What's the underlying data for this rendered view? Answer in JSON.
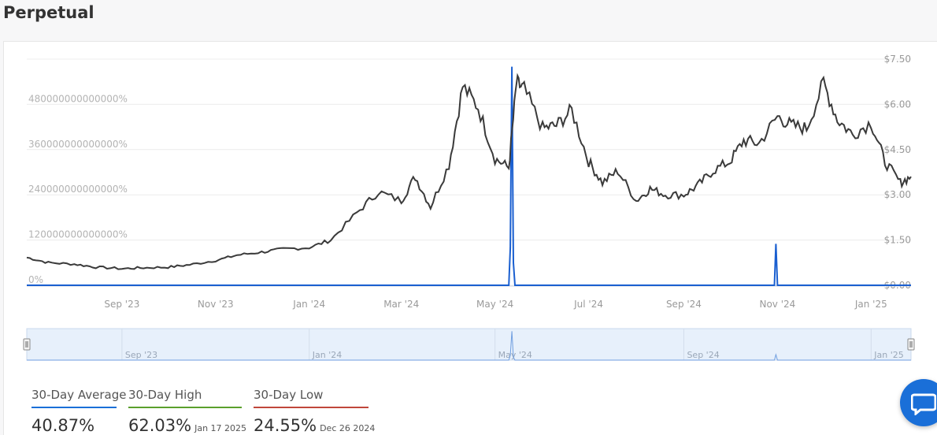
{
  "page": {
    "title": "Perpetual"
  },
  "colors": {
    "price_line": "#3a3a3a",
    "rate_line": "#1a5fd0",
    "navigator_fill": "#e7f0fb",
    "avg_accent": "#1a6fd8",
    "high_accent": "#5aa02c",
    "low_accent": "#c0473b",
    "chat_button": "#1a6fd8"
  },
  "chart_data": {
    "type": "line",
    "left_axis": {
      "ticks": [
        "0%",
        "120000000000000%",
        "240000000000000%",
        "360000000000000%",
        "480000000000000%"
      ],
      "tick_values": [
        0,
        120000000000000,
        240000000000000,
        360000000000000,
        480000000000000
      ],
      "range": [
        0,
        600000000000000
      ]
    },
    "right_axis": {
      "ticks": [
        "$0.00",
        "$1.50",
        "$3.00",
        "$4.50",
        "$6.00",
        "$7.50"
      ],
      "tick_values": [
        0,
        1.5,
        3.0,
        4.5,
        6.0,
        7.5
      ],
      "range": [
        0,
        7.5
      ]
    },
    "x_axis": {
      "range": [
        "2023-07-01",
        "2025-01-27"
      ],
      "ticks": [
        "Sep '23",
        "Nov '23",
        "Jan '24",
        "Mar '24",
        "May '24",
        "Jul '24",
        "Sep '24",
        "Nov '24",
        "Jan '25"
      ],
      "tick_dates": [
        "2023-09-01",
        "2023-11-01",
        "2024-01-01",
        "2024-03-01",
        "2024-05-01",
        "2024-07-01",
        "2024-09-01",
        "2024-11-01",
        "2025-01-01"
      ]
    },
    "navigator": {
      "ticks": [
        "Sep '23",
        "Jan '24",
        "May '24",
        "Sep '24",
        "Jan '25"
      ],
      "tick_dates": [
        "2023-09-01",
        "2024-01-01",
        "2024-05-01",
        "2024-09-01",
        "2025-01-01"
      ]
    },
    "grid": true,
    "series": [
      {
        "axis": "right",
        "x": [
          "2023-07-01",
          "2023-07-15",
          "2023-08-01",
          "2023-08-15",
          "2023-09-01",
          "2023-09-15",
          "2023-10-01",
          "2023-10-15",
          "2023-11-01",
          "2023-11-15",
          "2023-12-01",
          "2023-12-15",
          "2024-01-01",
          "2024-01-15",
          "2024-02-01",
          "2024-02-15",
          "2024-03-01",
          "2024-03-10",
          "2024-03-20",
          "2024-04-01",
          "2024-04-10",
          "2024-04-20",
          "2024-05-01",
          "2024-05-10",
          "2024-05-15",
          "2024-05-20",
          "2024-06-01",
          "2024-06-10",
          "2024-06-20",
          "2024-07-01",
          "2024-07-10",
          "2024-07-20",
          "2024-08-01",
          "2024-08-10",
          "2024-08-20",
          "2024-09-01",
          "2024-09-10",
          "2024-09-20",
          "2024-10-01",
          "2024-10-10",
          "2024-10-20",
          "2024-11-01",
          "2024-11-10",
          "2024-11-20",
          "2024-12-01",
          "2024-12-10",
          "2024-12-20",
          "2025-01-01",
          "2025-01-10",
          "2025-01-20",
          "2025-01-27"
        ],
        "values": [
          0.92,
          0.75,
          0.7,
          0.6,
          0.55,
          0.58,
          0.6,
          0.68,
          0.82,
          1.0,
          1.1,
          1.2,
          1.25,
          1.5,
          2.4,
          3.1,
          2.8,
          3.6,
          2.6,
          4.0,
          6.6,
          5.9,
          4.2,
          3.9,
          6.7,
          6.5,
          5.2,
          5.3,
          5.8,
          4.1,
          3.4,
          3.8,
          2.8,
          3.2,
          3.0,
          3.0,
          3.3,
          3.8,
          4.1,
          4.8,
          4.7,
          5.6,
          5.3,
          5.2,
          6.7,
          5.5,
          5.0,
          5.4,
          4.1,
          3.4,
          3.6
        ]
      },
      {
        "axis": "left",
        "x": [
          "2023-07-01",
          "2024-05-10",
          "2024-05-11",
          "2024-05-12",
          "2024-05-13",
          "2024-05-14",
          "2024-10-29",
          "2024-10-30",
          "2024-10-31",
          "2024-11-01",
          "2025-01-27"
        ],
        "values": [
          0,
          0,
          100000000000000,
          580000000000000,
          60000000000000,
          0,
          0,
          0,
          110000000000000,
          0,
          0
        ]
      }
    ]
  },
  "stats": {
    "average": {
      "label": "30-Day Average",
      "value": "40.87%",
      "date": ""
    },
    "high": {
      "label": "30-Day High",
      "value": "62.03%",
      "date": "Jan 17 2025"
    },
    "low": {
      "label": "30-Day Low",
      "value": "24.55%",
      "date": "Dec 26 2024"
    }
  }
}
